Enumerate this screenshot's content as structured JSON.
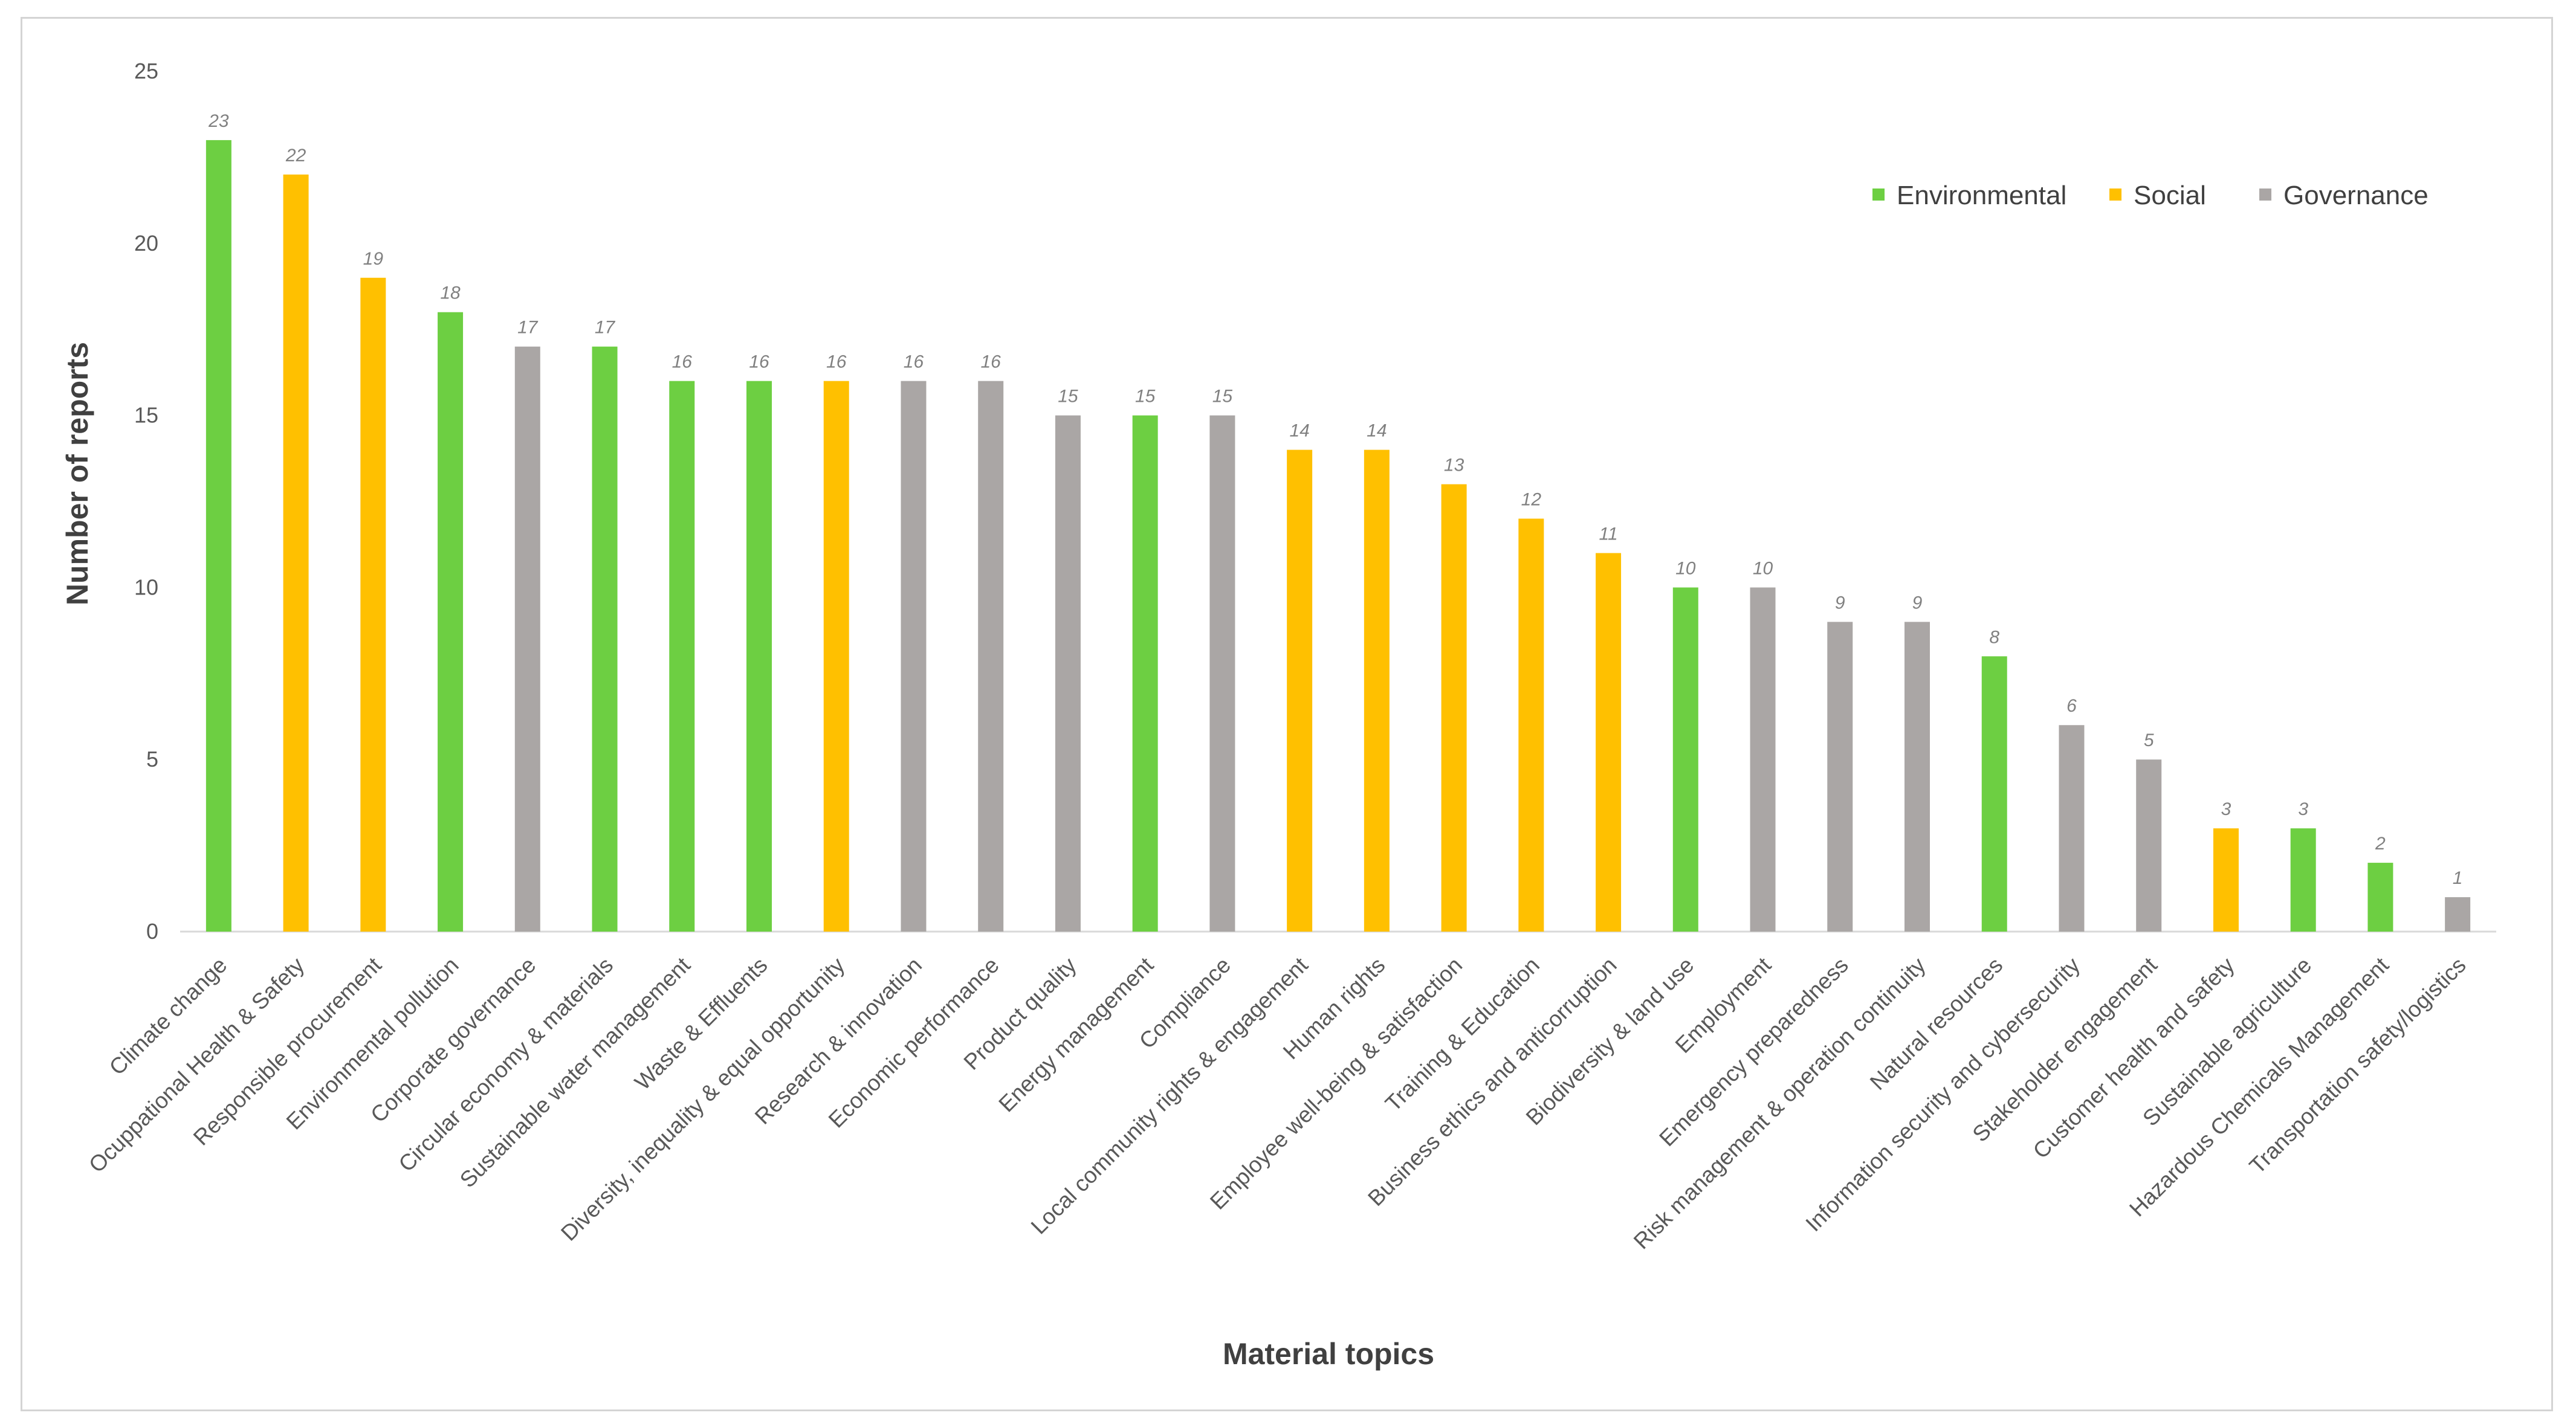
{
  "chart_data": {
    "type": "bar",
    "title": "",
    "xlabel": "Material topics",
    "ylabel": "Number of reports",
    "ylim": [
      0,
      25
    ],
    "yticks": [
      0,
      5,
      10,
      15,
      20,
      25
    ],
    "grid": false,
    "legend_position": "top-right",
    "legend": [
      {
        "name": "Environmental",
        "color": "#6dcf42"
      },
      {
        "name": "Social",
        "color": "#ffc000"
      },
      {
        "name": "Governance",
        "color": "#aaa6a5"
      }
    ],
    "categories": [
      "Climate change",
      "Ocuppational Health & Safety",
      "Responsible procurement",
      "Environmental pollution",
      "Corporate governance",
      "Circular economy & materials",
      "Sustainable water management",
      "Waste & Effluents",
      "Diversity, inequality  & equal opportunity",
      "Research & innovation",
      "Economic performance",
      "Product quality",
      "Energy management",
      "Compliance",
      "Local community rights & engagement",
      "Human rights",
      "Employee well-being & satisfaction",
      "Training & Education",
      "Business ethics and anticorruption",
      "Biodiversity & land use",
      "Employment",
      "Emergency preparedness",
      "Risk management & operation continuity",
      "Natural resources",
      "Information security and cybersecurity",
      "Stakeholder engagement",
      "Customer health and safety",
      "Sustainable agriculture",
      "Hazardous Chemicals Management",
      "Transportation safety/logistics"
    ],
    "values": [
      23,
      22,
      19,
      18,
      17,
      17,
      16,
      16,
      16,
      16,
      16,
      15,
      15,
      15,
      14,
      14,
      13,
      12,
      11,
      10,
      10,
      9,
      9,
      8,
      6,
      5,
      3,
      3,
      2,
      1
    ],
    "groups": [
      "Environmental",
      "Social",
      "Social",
      "Environmental",
      "Governance",
      "Environmental",
      "Environmental",
      "Environmental",
      "Social",
      "Governance",
      "Governance",
      "Governance",
      "Environmental",
      "Governance",
      "Social",
      "Social",
      "Social",
      "Social",
      "Social",
      "Environmental",
      "Governance",
      "Governance",
      "Governance",
      "Environmental",
      "Governance",
      "Governance",
      "Social",
      "Environmental",
      "Environmental",
      "Governance"
    ]
  }
}
